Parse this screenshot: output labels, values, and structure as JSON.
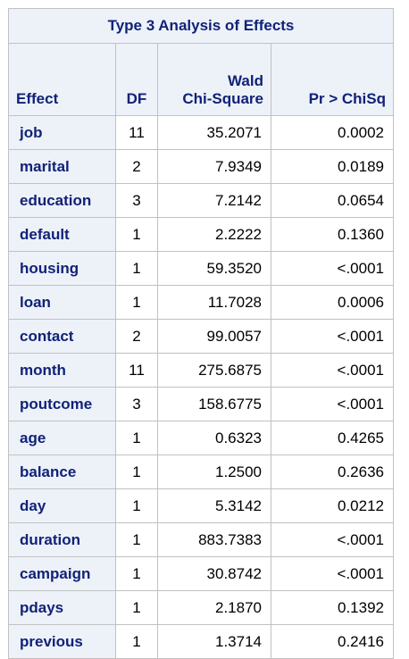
{
  "title": "Type 3 Analysis of Effects",
  "columns": {
    "effect": "Effect",
    "df": "DF",
    "wald_line1": "Wald",
    "wald_line2": "Chi-Square",
    "p": "Pr > ChiSq"
  },
  "rows": [
    {
      "effect": "job",
      "df": "11",
      "chisq": "35.2071",
      "p": "0.0002"
    },
    {
      "effect": "marital",
      "df": "2",
      "chisq": "7.9349",
      "p": "0.0189"
    },
    {
      "effect": "education",
      "df": "3",
      "chisq": "7.2142",
      "p": "0.0654"
    },
    {
      "effect": "default",
      "df": "1",
      "chisq": "2.2222",
      "p": "0.1360"
    },
    {
      "effect": "housing",
      "df": "1",
      "chisq": "59.3520",
      "p": "<.0001"
    },
    {
      "effect": "loan",
      "df": "1",
      "chisq": "11.7028",
      "p": "0.0006"
    },
    {
      "effect": "contact",
      "df": "2",
      "chisq": "99.0057",
      "p": "<.0001"
    },
    {
      "effect": "month",
      "df": "11",
      "chisq": "275.6875",
      "p": "<.0001"
    },
    {
      "effect": "poutcome",
      "df": "3",
      "chisq": "158.6775",
      "p": "<.0001"
    },
    {
      "effect": "age",
      "df": "1",
      "chisq": "0.6323",
      "p": "0.4265"
    },
    {
      "effect": "balance",
      "df": "1",
      "chisq": "1.2500",
      "p": "0.2636"
    },
    {
      "effect": "day",
      "df": "1",
      "chisq": "5.3142",
      "p": "0.0212"
    },
    {
      "effect": "duration",
      "df": "1",
      "chisq": "883.7383",
      "p": "<.0001"
    },
    {
      "effect": "campaign",
      "df": "1",
      "chisq": "30.8742",
      "p": "<.0001"
    },
    {
      "effect": "pdays",
      "df": "1",
      "chisq": "2.1870",
      "p": "0.1392"
    },
    {
      "effect": "previous",
      "df": "1",
      "chisq": "1.3714",
      "p": "0.2416"
    }
  ],
  "colors": {
    "header_bg": "#edf2f9",
    "header_text": "#112277",
    "border": "#c1c1c1"
  }
}
